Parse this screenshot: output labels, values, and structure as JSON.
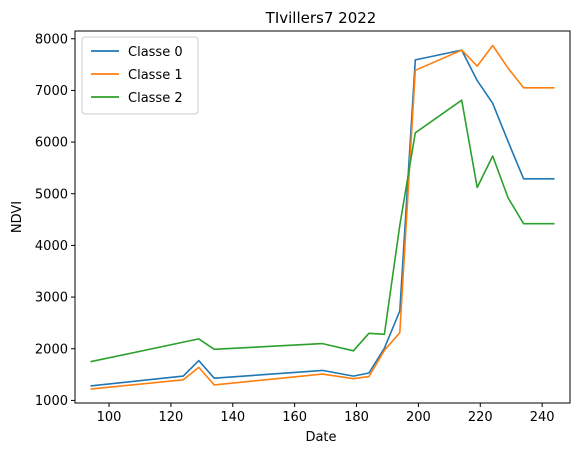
{
  "chart_data": {
    "type": "line",
    "title": "TIvillers7 2022",
    "xlabel": "Date",
    "ylabel": "NDVI",
    "xlim": [
      89,
      249
    ],
    "ylim": [
      950,
      8150
    ],
    "xticks": [
      100,
      120,
      140,
      160,
      180,
      200,
      220,
      240
    ],
    "yticks": [
      1000,
      2000,
      3000,
      4000,
      5000,
      6000,
      7000,
      8000
    ],
    "grid": false,
    "legend_position": "top-left",
    "series": [
      {
        "name": "Classe 0",
        "color": "#1f77b4",
        "x": [
          94,
          124,
          129,
          134,
          169,
          179,
          184,
          189,
          194,
          199,
          214,
          219,
          224,
          229,
          234,
          244
        ],
        "y": [
          1280,
          1470,
          1770,
          1430,
          1580,
          1470,
          1530,
          2010,
          2730,
          7590,
          7780,
          7190,
          6750,
          6010,
          5290,
          5290
        ]
      },
      {
        "name": "Classe 1",
        "color": "#ff7f0e",
        "x": [
          94,
          124,
          129,
          134,
          169,
          179,
          184,
          189,
          194,
          199,
          214,
          219,
          224,
          229,
          234,
          244
        ],
        "y": [
          1220,
          1400,
          1640,
          1300,
          1510,
          1420,
          1460,
          1970,
          2310,
          7390,
          7780,
          7470,
          7870,
          7430,
          7050,
          7050
        ]
      },
      {
        "name": "Classe 2",
        "color": "#2ca02c",
        "x": [
          94,
          129,
          134,
          169,
          179,
          184,
          189,
          194,
          199,
          214,
          219,
          224,
          229,
          234,
          244
        ],
        "y": [
          1750,
          2190,
          1990,
          2100,
          1960,
          2300,
          2280,
          4390,
          6180,
          6810,
          5120,
          5730,
          4920,
          4420,
          4420
        ]
      }
    ]
  }
}
